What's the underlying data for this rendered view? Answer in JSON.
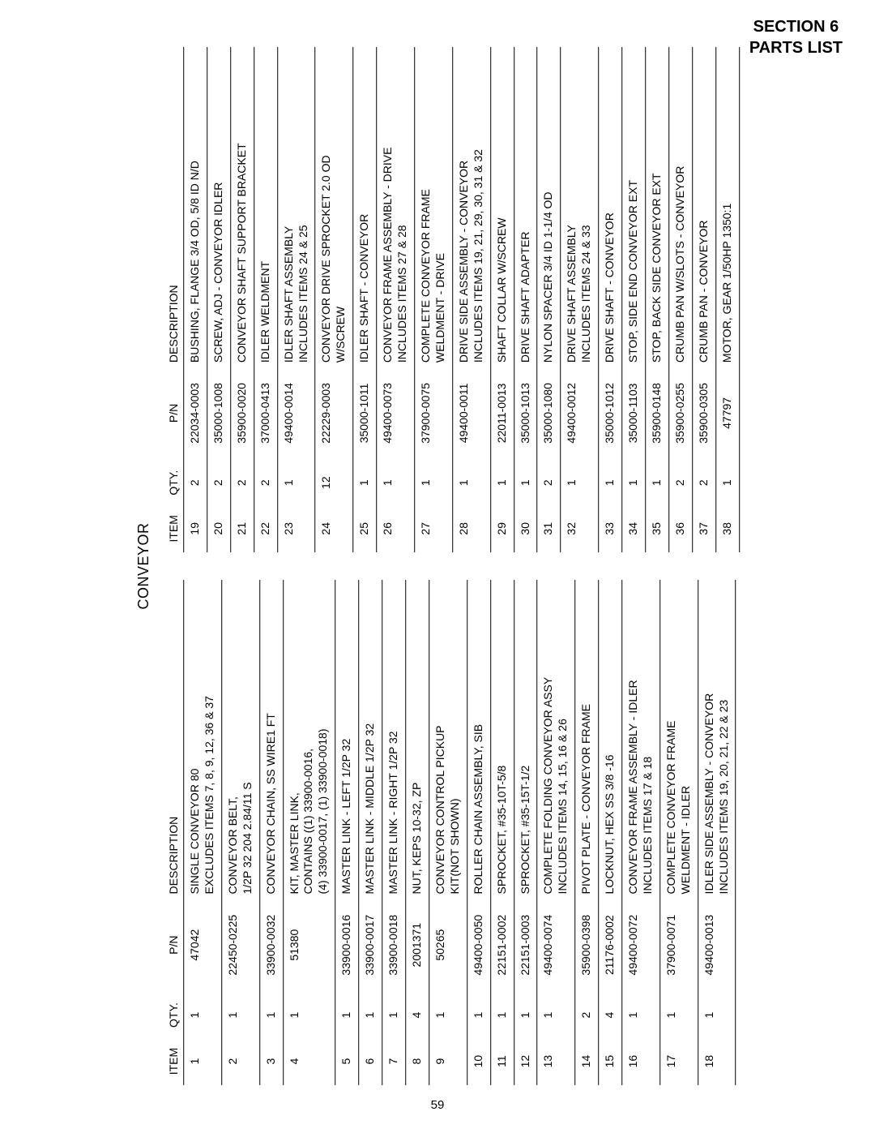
{
  "header": {
    "line1": "SECTION 6",
    "line2": "PARTS LIST"
  },
  "title": "CONVEYOR",
  "column_headers": {
    "item": "ITEM",
    "qty": "QTY.",
    "pn": "P/N",
    "desc": "DESCRIPTION"
  },
  "page_number": "59",
  "left_table": [
    {
      "item": "1",
      "qty": "1",
      "pn": "47042",
      "desc": "SINGLE CONVEYOR 80\nEXCLUDES ITEMS 7, 8, 9, 12, 36 & 37"
    },
    {
      "item": "2",
      "qty": "1",
      "pn": "22450-0225",
      "desc": "CONVEYOR BELT,\n1/2P 32   204   2.84/11 S"
    },
    {
      "item": "3",
      "qty": "1",
      "pn": "33900-0032",
      "desc": "CONVEYOR CHAIN, SS WIRE1 FT"
    },
    {
      "item": "4",
      "qty": "1",
      "pn": "51380",
      "desc": "KIT, MASTER LINK,\nCONTAINS ((1) 33900-0016,\n(4) 33900-0017, (1) 33900-0018)"
    },
    {
      "item": "5",
      "qty": "1",
      "pn": "33900-0016",
      "desc": "MASTER LINK - LEFT 1/2P   32"
    },
    {
      "item": "6",
      "qty": "1",
      "pn": "33900-0017",
      "desc": "MASTER LINK - MIDDLE 1/2P   32"
    },
    {
      "item": "7",
      "qty": "1",
      "pn": "33900-0018",
      "desc": "MASTER LINK - RIGHT 1/2P   32"
    },
    {
      "item": "8",
      "qty": "4",
      "pn": "2001371",
      "desc": "NUT, KEPS 10-32, ZP"
    },
    {
      "item": "9",
      "qty": "1",
      "pn": "50265",
      "desc": "CONVEYOR CONTROL PICKUP\nKIT(NOT SHOWN)"
    },
    {
      "item": "10",
      "qty": "1",
      "pn": "49400-0050",
      "desc": "ROLLER CHAIN ASSEMBLY, SIB"
    },
    {
      "item": "11",
      "qty": "1",
      "pn": "22151-0002",
      "desc": "SPROCKET, #35-10T-5/8"
    },
    {
      "item": "12",
      "qty": "1",
      "pn": "22151-0003",
      "desc": "SPROCKET, #35-15T-1/2"
    },
    {
      "item": "13",
      "qty": "1",
      "pn": "49400-0074",
      "desc": "COMPLETE FOLDING CONVEYOR ASSY\nINCLUDES ITEMS 14, 15, 16 & 26"
    },
    {
      "item": "14",
      "qty": "2",
      "pn": "35900-0398",
      "desc": "PIVOT PLATE - CONVEYOR FRAME"
    },
    {
      "item": "15",
      "qty": "4",
      "pn": "21176-0002",
      "desc": "LOCKNUT, HEX SS 3/8 -16"
    },
    {
      "item": "16",
      "qty": "1",
      "pn": "49400-0072",
      "desc": "CONVEYOR FRAME ASSEMBLY - IDLER\nINCLUDES ITEMS 17 & 18"
    },
    {
      "item": "17",
      "qty": "1",
      "pn": "37900-0071",
      "desc": "COMPLETE CONVEYOR FRAME\nWELDMENT - IDLER"
    },
    {
      "item": "18",
      "qty": "1",
      "pn": "49400-0013",
      "desc": "IDLER SIDE ASSEMBLY - CONVEYOR\nINCLUDES ITEMS 19, 20, 21, 22 & 23"
    }
  ],
  "right_table": [
    {
      "item": "19",
      "qty": "2",
      "pn": "22034-0003",
      "desc": "BUSHING, FLANGE 3/4  OD,   5/8   ID N/D"
    },
    {
      "item": "20",
      "qty": "2",
      "pn": "35000-1008",
      "desc": "SCREW, ADJ - CONVEYOR IDLER"
    },
    {
      "item": "21",
      "qty": "2",
      "pn": "35900-0020",
      "desc": "CONVEYOR SHAFT SUPPORT BRACKET"
    },
    {
      "item": "22",
      "qty": "2",
      "pn": "37000-0413",
      "desc": "IDLER WELDMENT"
    },
    {
      "item": "23",
      "qty": "1",
      "pn": "49400-0014",
      "desc": "IDLER SHAFT ASSEMBLY\nINCLUDES ITEMS 24 & 25"
    },
    {
      "item": "24",
      "qty": "12",
      "pn": "22229-0003",
      "desc": "CONVEYOR DRIVE SPROCKET 2.0  OD\nW/SCREW"
    },
    {
      "item": "25",
      "qty": "1",
      "pn": "35000-1011",
      "desc": "IDLER SHAFT - CONVEYOR"
    },
    {
      "item": "26",
      "qty": "1",
      "pn": "49400-0073",
      "desc": "CONVEYOR FRAME ASSEMBLY - DRIVE\nINCLUDES ITEMS 27 & 28"
    },
    {
      "item": "27",
      "qty": "1",
      "pn": "37900-0075",
      "desc": "COMPLETE CONVEYOR FRAME\nWELDMENT - DRIVE"
    },
    {
      "item": "28",
      "qty": "1",
      "pn": "49400-0011",
      "desc": "DRIVE SIDE ASSEMBLY - CONVEYOR\nINCLUDES ITEMS 19, 21, 29, 30, 31 & 32"
    },
    {
      "item": "29",
      "qty": "1",
      "pn": "22011-0013",
      "desc": "SHAFT COLLAR W/SCREW"
    },
    {
      "item": "30",
      "qty": "1",
      "pn": "35000-1013",
      "desc": "DRIVE SHAFT ADAPTER"
    },
    {
      "item": "31",
      "qty": "2",
      "pn": "35000-1080",
      "desc": "NYLON SPACER 3/4   ID 1-1/4   OD"
    },
    {
      "item": "32",
      "qty": "1",
      "pn": "49400-0012",
      "desc": "DRIVE SHAFT ASSEMBLY\nINCLUDES ITEMS 24 & 33"
    },
    {
      "item": "33",
      "qty": "1",
      "pn": "35000-1012",
      "desc": "DRIVE SHAFT - CONVEYOR"
    },
    {
      "item": "34",
      "qty": "1",
      "pn": "35000-1103",
      "desc": "STOP, SIDE END CONVEYOR EXT"
    },
    {
      "item": "35",
      "qty": "1",
      "pn": "35900-0148",
      "desc": "STOP, BACK SIDE CONVEYOR EXT"
    },
    {
      "item": "36",
      "qty": "2",
      "pn": "35900-0255",
      "desc": "CRUMB PAN W/SLOTS - CONVEYOR"
    },
    {
      "item": "37",
      "qty": "2",
      "pn": "35900-0305",
      "desc": "CRUMB PAN - CONVEYOR"
    },
    {
      "item": "38",
      "qty": "1",
      "pn": "47797",
      "desc": "MOTOR, GEAR 1/50HP 1350:1"
    }
  ]
}
